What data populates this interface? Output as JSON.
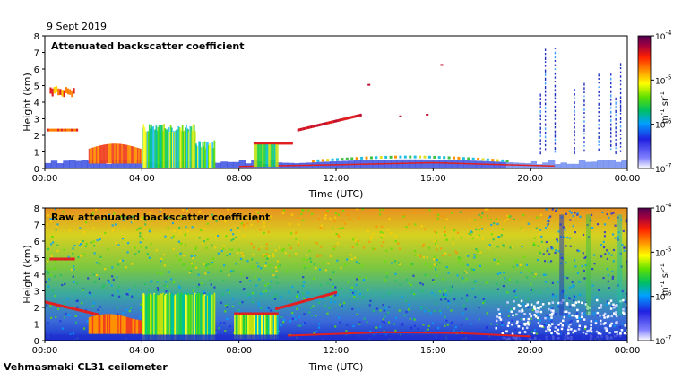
{
  "date_label": "9 Sept 2019",
  "footer_label": "Vehmasmaki CL31 ceilometer",
  "colors": {
    "frame": "#000000",
    "background": "#ffffff"
  },
  "chart_data": [
    {
      "type": "heatmap",
      "title": "Attenuated backscatter coefficient",
      "xlabel": "Time (UTC)",
      "ylabel": "Height (km)",
      "x_ticks": [
        "00:00",
        "04:00",
        "08:00",
        "12:00",
        "16:00",
        "20:00",
        "00:00"
      ],
      "y_ticks": [
        "0",
        "1",
        "2",
        "3",
        "4",
        "5",
        "6",
        "7",
        "8"
      ],
      "x_range_hours": [
        0,
        24
      ],
      "ylim": [
        0,
        8
      ],
      "colorbar": {
        "scale": "log",
        "tick_labels": [
          "10",
          "10",
          "10",
          "10"
        ],
        "tick_exponents": [
          "-7",
          "-6",
          "-5",
          "-4"
        ],
        "unit_base": [
          "m",
          "sr"
        ],
        "unit_exponents": [
          "-1",
          "-1"
        ]
      }
    },
    {
      "type": "heatmap",
      "title": "Raw attenuated backscatter coefficient",
      "xlabel": "Time (UTC)",
      "ylabel": "Height (km)",
      "x_ticks": [
        "00:00",
        "04:00",
        "08:00",
        "12:00",
        "16:00",
        "20:00",
        "00:00"
      ],
      "y_ticks": [
        "0",
        "1",
        "2",
        "3",
        "4",
        "5",
        "6",
        "7",
        "8"
      ],
      "x_range_hours": [
        0,
        24
      ],
      "ylim": [
        0,
        8
      ],
      "colorbar": {
        "scale": "log",
        "tick_labels": [
          "10",
          "10",
          "10",
          "10"
        ],
        "tick_exponents": [
          "-7",
          "-6",
          "-5",
          "-4"
        ],
        "unit_base": [
          "m",
          "sr"
        ],
        "unit_exponents": [
          "-1",
          "-1"
        ]
      }
    }
  ]
}
